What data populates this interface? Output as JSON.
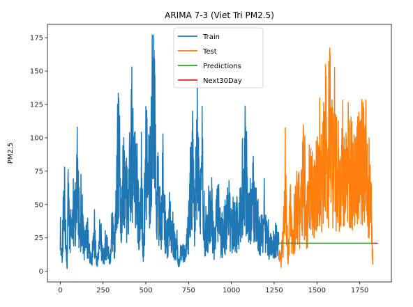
{
  "chart_data": {
    "type": "line",
    "title": "ARIMA 7-3 (Viet Tri PM2.5)",
    "xlabel": "",
    "ylabel": "PM2.5",
    "xlim": [
      -75,
      1935
    ],
    "ylim": [
      -8,
      185
    ],
    "xticks": [
      0,
      250,
      500,
      750,
      1000,
      1250,
      1500,
      1750
    ],
    "yticks": [
      0,
      25,
      50,
      75,
      100,
      125,
      150,
      175
    ],
    "legend_position": "top-center",
    "grid": false,
    "series": [
      {
        "name": "Train",
        "color": "#1f77b4",
        "x_range": [
          0,
          1277
        ],
        "noise_seed": 11,
        "anchors": [
          [
            0,
            37
          ],
          [
            10,
            18
          ],
          [
            20,
            74
          ],
          [
            30,
            60
          ],
          [
            40,
            2
          ],
          [
            45,
            114
          ],
          [
            55,
            45
          ],
          [
            70,
            55
          ],
          [
            85,
            62
          ],
          [
            100,
            98
          ],
          [
            115,
            45
          ],
          [
            125,
            68
          ],
          [
            140,
            30
          ],
          [
            160,
            40
          ],
          [
            180,
            8
          ],
          [
            200,
            40
          ],
          [
            215,
            5
          ],
          [
            230,
            40
          ],
          [
            250,
            15
          ],
          [
            270,
            30
          ],
          [
            290,
            12
          ],
          [
            305,
            45
          ],
          [
            320,
            30
          ],
          [
            335,
            125
          ],
          [
            345,
            153
          ],
          [
            355,
            35
          ],
          [
            365,
            105
          ],
          [
            380,
            120
          ],
          [
            395,
            55
          ],
          [
            410,
            130
          ],
          [
            430,
            115
          ],
          [
            450,
            95
          ],
          [
            460,
            50
          ],
          [
            475,
            110
          ],
          [
            485,
            15
          ],
          [
            500,
            130
          ],
          [
            510,
            115
          ],
          [
            520,
            105
          ],
          [
            535,
            160
          ],
          [
            540,
            176
          ],
          [
            550,
            175
          ],
          [
            558,
            110
          ],
          [
            570,
            85
          ],
          [
            590,
            50
          ],
          [
            600,
            90
          ],
          [
            620,
            30
          ],
          [
            640,
            60
          ],
          [
            660,
            35
          ],
          [
            680,
            30
          ],
          [
            690,
            10
          ],
          [
            710,
            20
          ],
          [
            730,
            15
          ],
          [
            750,
            50
          ],
          [
            770,
            110
          ],
          [
            785,
            75
          ],
          [
            800,
            130
          ],
          [
            815,
            75
          ],
          [
            830,
            130
          ],
          [
            845,
            35
          ],
          [
            860,
            50
          ],
          [
            880,
            65
          ],
          [
            900,
            30
          ],
          [
            920,
            70
          ],
          [
            940,
            35
          ],
          [
            960,
            40
          ],
          [
            980,
            70
          ],
          [
            1000,
            50
          ],
          [
            1020,
            60
          ],
          [
            1040,
            45
          ],
          [
            1060,
            70
          ],
          [
            1080,
            124
          ],
          [
            1090,
            80
          ],
          [
            1110,
            65
          ],
          [
            1130,
            70
          ],
          [
            1150,
            60
          ],
          [
            1170,
            40
          ],
          [
            1190,
            60
          ],
          [
            1210,
            35
          ],
          [
            1230,
            30
          ],
          [
            1250,
            35
          ],
          [
            1270,
            30
          ],
          [
            1277,
            25
          ]
        ],
        "values": []
      },
      {
        "name": "Test",
        "color": "#ff7f0e",
        "x_range": [
          1277,
          1826
        ],
        "noise_seed": 29,
        "anchors": [
          [
            1277,
            20
          ],
          [
            1290,
            10
          ],
          [
            1305,
            45
          ],
          [
            1315,
            95
          ],
          [
            1330,
            15
          ],
          [
            1345,
            75
          ],
          [
            1360,
            30
          ],
          [
            1380,
            80
          ],
          [
            1400,
            55
          ],
          [
            1420,
            115
          ],
          [
            1435,
            60
          ],
          [
            1450,
            70
          ],
          [
            1470,
            105
          ],
          [
            1490,
            80
          ],
          [
            1510,
            120
          ],
          [
            1525,
            90
          ],
          [
            1540,
            140
          ],
          [
            1550,
            178
          ],
          [
            1560,
            90
          ],
          [
            1575,
            175
          ],
          [
            1590,
            125
          ],
          [
            1605,
            125
          ],
          [
            1620,
            100
          ],
          [
            1640,
            105
          ],
          [
            1660,
            110
          ],
          [
            1680,
            100
          ],
          [
            1700,
            120
          ],
          [
            1720,
            105
          ],
          [
            1740,
            130
          ],
          [
            1760,
            120
          ],
          [
            1780,
            140
          ],
          [
            1800,
            95
          ],
          [
            1815,
            85
          ],
          [
            1826,
            15
          ]
        ],
        "values": []
      },
      {
        "name": "Predictions",
        "color": "#2ca02c",
        "x": [
          1277,
          1826
        ],
        "values": [
          21,
          21
        ]
      },
      {
        "name": "Next30Day",
        "color": "#d62728",
        "x": [
          1826,
          1856
        ],
        "values": [
          21,
          21
        ]
      }
    ]
  }
}
